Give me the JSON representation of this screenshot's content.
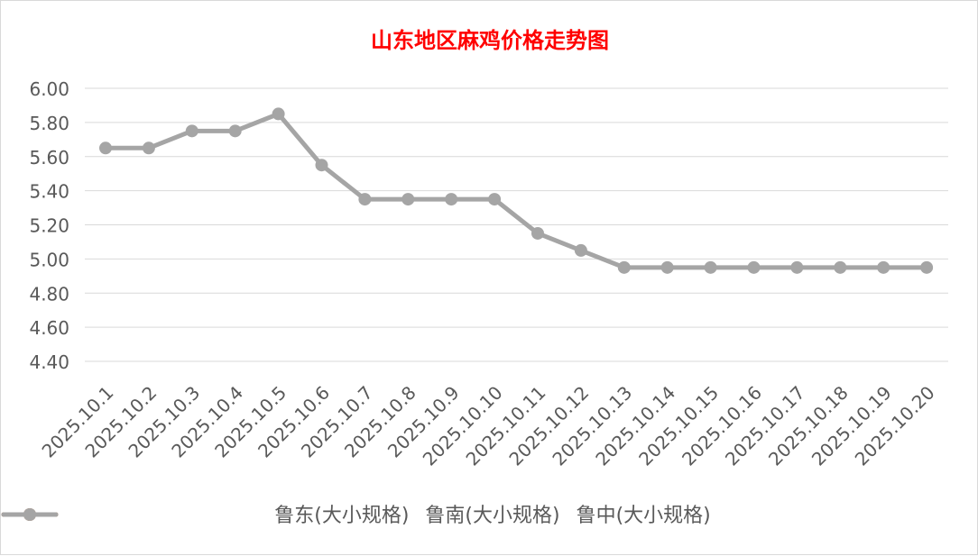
{
  "chart_data": {
    "type": "line",
    "title": "山东地区麻鸡价格走势图",
    "categories": [
      "2025.10.1",
      "2025.10.2",
      "2025.10.3",
      "2025.10.4",
      "2025.10.5",
      "2025.10.6",
      "2025.10.7",
      "2025.10.8",
      "2025.10.9",
      "2025.10.10",
      "2025.10.11",
      "2025.10.12",
      "2025.10.13",
      "2025.10.14",
      "2025.10.15",
      "2025.10.16",
      "2025.10.17",
      "2025.10.18",
      "2025.10.19",
      "2025.10.20"
    ],
    "ylim": [
      4.4,
      6.0
    ],
    "yticks": [
      "6.00",
      "5.80",
      "5.60",
      "5.40",
      "5.20",
      "5.00",
      "4.80",
      "4.60",
      "4.40"
    ],
    "grid": true,
    "legend_position": "bottom",
    "series": [
      {
        "name": "鲁东(大小规格)",
        "color": "#5b9bd5",
        "values": [
          null,
          null,
          null,
          null,
          null,
          null,
          null,
          null,
          null,
          null,
          null,
          null,
          null,
          null,
          null,
          null,
          null,
          null,
          null,
          null
        ]
      },
      {
        "name": "鲁南(大小规格)",
        "color": "#ed7d31",
        "values": [
          null,
          null,
          null,
          null,
          null,
          null,
          null,
          null,
          null,
          null,
          null,
          null,
          null,
          null,
          null,
          null,
          null,
          null,
          null,
          null
        ]
      },
      {
        "name": "鲁中(大小规格)",
        "color": "#a5a5a5",
        "values": [
          5.65,
          5.65,
          5.75,
          5.75,
          5.85,
          5.55,
          5.35,
          5.35,
          5.35,
          5.35,
          5.15,
          5.05,
          4.95,
          4.95,
          4.95,
          4.95,
          4.95,
          4.95,
          4.95,
          4.95
        ]
      }
    ]
  }
}
